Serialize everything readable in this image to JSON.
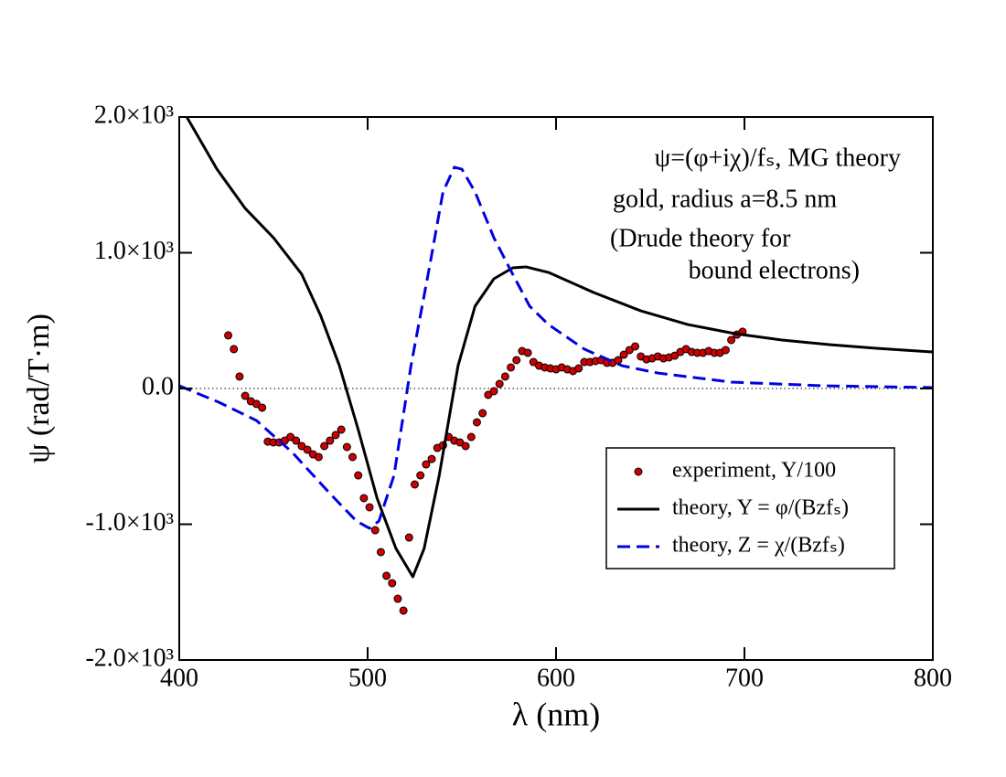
{
  "chart_data": {
    "type": "line",
    "xlabel": "λ (nm)",
    "ylabel": "ψ (rad/T·m)",
    "xlim": [
      400,
      800
    ],
    "ylim": [
      -2000,
      2000
    ],
    "xticks": [
      400,
      500,
      600,
      700,
      800
    ],
    "yticks": [
      {
        "value": 2000,
        "label": "2.0×10³"
      },
      {
        "value": 1000,
        "label": "1.0×10³"
      },
      {
        "value": 0,
        "label": "0.0"
      },
      {
        "value": -1000,
        "label": "-1.0×10³"
      },
      {
        "value": -2000,
        "label": "-2.0×10³"
      }
    ],
    "zero_line": true,
    "legend": "lower right",
    "annotations": [
      "ψ=(φ+iχ)/fₛ, MG theory",
      "gold, radius a=8.5 nm",
      "(Drude theory for",
      "bound electrons)"
    ],
    "series": [
      {
        "name": "experiment, Y/100",
        "style": "markers",
        "color": "#cc0000",
        "x": [
          426,
          429,
          432,
          435,
          438,
          441,
          444,
          447,
          450,
          453,
          456,
          459,
          462,
          465,
          468,
          471,
          474,
          477,
          480,
          483,
          486,
          489,
          492,
          495,
          498,
          501,
          504,
          507,
          510,
          513,
          516,
          519,
          522,
          525,
          528,
          531,
          534,
          537,
          540,
          543,
          546,
          549,
          552,
          555,
          558,
          561,
          564,
          567,
          570,
          573,
          576,
          579,
          582,
          585,
          588,
          591,
          594,
          597,
          600,
          603,
          606,
          609,
          612,
          615,
          618,
          621,
          624,
          627,
          630,
          633,
          636,
          639,
          642,
          645,
          648,
          651,
          654,
          657,
          660,
          663,
          666,
          669,
          672,
          675,
          678,
          681,
          684,
          687,
          690,
          693,
          696,
          699
        ],
        "values": [
          391,
          290,
          88,
          -54,
          -94,
          -114,
          -141,
          -391,
          -397,
          -397,
          -384,
          -357,
          -384,
          -424,
          -451,
          -485,
          -505,
          -424,
          -384,
          -343,
          -303,
          -431,
          -505,
          -640,
          -808,
          -875,
          -1044,
          -1205,
          -1380,
          -1434,
          -1549,
          -1636,
          -1098,
          -707,
          -640,
          -559,
          -519,
          -438,
          -418,
          -357,
          -384,
          -397,
          -424,
          -357,
          -249,
          -182,
          -47,
          -20,
          34,
          88,
          155,
          209,
          276,
          263,
          195,
          168,
          155,
          148,
          141,
          155,
          141,
          128,
          148,
          195,
          195,
          202,
          209,
          189,
          189,
          209,
          249,
          283,
          310,
          236,
          215,
          222,
          236,
          222,
          229,
          242,
          269,
          290,
          269,
          263,
          263,
          276,
          263,
          263,
          283,
          357,
          397,
          418
        ]
      },
      {
        "name": "theory, Y = φ/(Bzfₛ)",
        "style": "solid",
        "color": "#000000",
        "x": [
          404,
          420,
          435,
          450,
          465,
          475,
          485,
          495,
          505,
          515,
          524,
          530,
          538,
          548,
          557,
          567,
          577,
          584,
          596,
          620,
          645,
          670,
          695,
          720,
          745,
          770,
          800
        ],
        "values": [
          2000,
          1616,
          1327,
          1111,
          842,
          539,
          168,
          -303,
          -808,
          -1178,
          -1387,
          -1178,
          -640,
          168,
          606,
          808,
          889,
          896,
          855,
          707,
          572,
          471,
          404,
          357,
          323,
          296,
          269
        ]
      },
      {
        "name": "theory, Z = χ/(Bzfₛ)",
        "style": "dashed",
        "color": "#0000e0",
        "x": [
          400,
          421,
          441,
          460,
          480,
          494,
          501,
          506,
          514,
          523,
          533,
          540,
          546,
          550,
          557,
          567,
          577,
          586,
          596,
          615,
          635,
          654,
          693,
          742,
          800
        ],
        "values": [
          20,
          -101,
          -236,
          -471,
          -774,
          -976,
          -1030,
          -976,
          -640,
          168,
          909,
          1448,
          1630,
          1616,
          1448,
          1111,
          842,
          606,
          471,
          290,
          168,
          114,
          47,
          20,
          7
        ]
      }
    ]
  }
}
